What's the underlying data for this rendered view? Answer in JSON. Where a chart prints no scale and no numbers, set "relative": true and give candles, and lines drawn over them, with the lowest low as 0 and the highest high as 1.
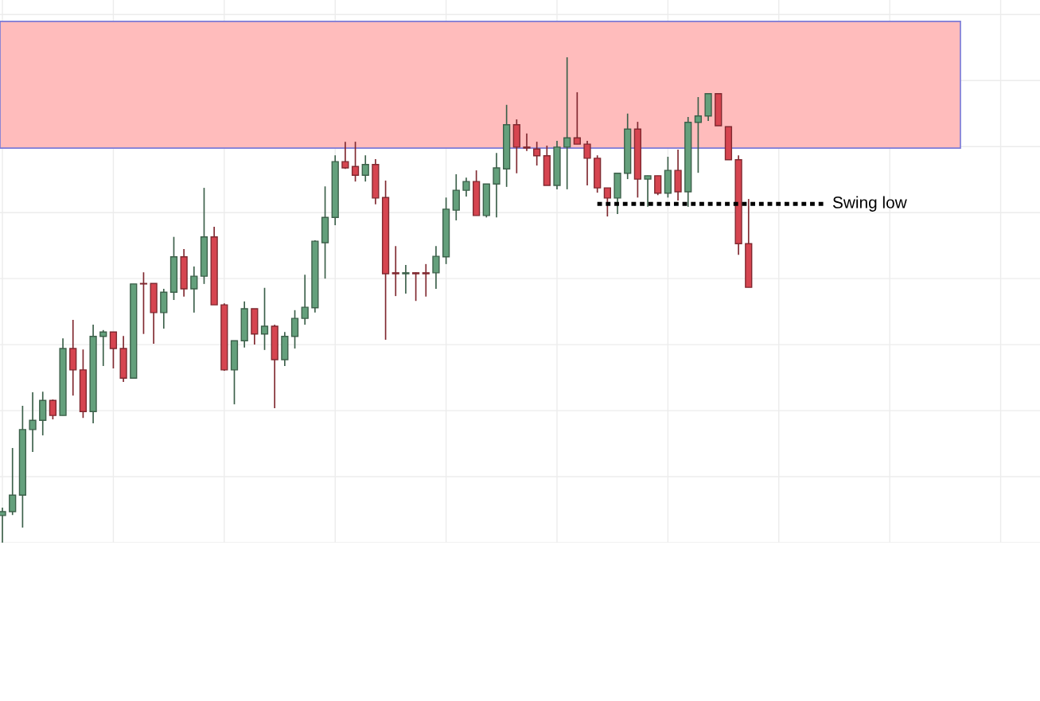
{
  "chart_data": {
    "type": "candlestick",
    "relative": true,
    "grid": true,
    "tick_labels": false,
    "categories": [
      null,
      null,
      null,
      null,
      null,
      null,
      null,
      null,
      null,
      null,
      null,
      null,
      null,
      null,
      null,
      null,
      null,
      null,
      null,
      null,
      null,
      null,
      null,
      null,
      null,
      null,
      null,
      null,
      null,
      null,
      null,
      null,
      null,
      null,
      null,
      null,
      null,
      null,
      null,
      null,
      null,
      null,
      null,
      null,
      null,
      null,
      null,
      null,
      null,
      null,
      null,
      null,
      null,
      null,
      null,
      null,
      null,
      null,
      null,
      null,
      null,
      null,
      null,
      null,
      null,
      null,
      null,
      null,
      null,
      null,
      null,
      null,
      null,
      null,
      null
    ],
    "ohlc": [
      [
        0.056,
        0.072,
        0,
        0.064
      ],
      [
        0.064,
        0.195,
        0.057,
        0.098
      ],
      [
        0.098,
        0.282,
        0.031,
        0.233
      ],
      [
        0.233,
        0.31,
        0.187,
        0.252
      ],
      [
        0.252,
        0.311,
        0.221,
        0.293
      ],
      [
        0.293,
        0.295,
        0.254,
        0.262
      ],
      [
        0.262,
        0.421,
        0.262,
        0.4
      ],
      [
        0.4,
        0.459,
        0.303,
        0.356
      ],
      [
        0.356,
        0.398,
        0.257,
        0.27
      ],
      [
        0.27,
        0.449,
        0.246,
        0.425
      ],
      [
        0.425,
        0.438,
        0.364,
        0.434
      ],
      [
        0.434,
        0.434,
        0.359,
        0.4
      ],
      [
        0.4,
        0.426,
        0.331,
        0.339
      ],
      [
        0.339,
        0.533,
        0.339,
        0.533
      ],
      [
        0.534,
        0.557,
        0.43,
        0.533
      ],
      [
        0.534,
        0.534,
        0.41,
        0.474
      ],
      [
        0.474,
        0.523,
        0.441,
        0.516
      ],
      [
        0.516,
        0.63,
        0.5,
        0.589
      ],
      [
        0.589,
        0.605,
        0.507,
        0.523
      ],
      [
        0.523,
        0.569,
        0.474,
        0.549
      ],
      [
        0.549,
        0.731,
        0.533,
        0.63
      ],
      [
        0.63,
        0.651,
        0.49,
        0.49
      ],
      [
        0.49,
        0.493,
        0.354,
        0.356
      ],
      [
        0.356,
        0.416,
        0.285,
        0.416
      ],
      [
        0.416,
        0.497,
        0.402,
        0.482
      ],
      [
        0.482,
        0.482,
        0.408,
        0.43
      ],
      [
        0.43,
        0.525,
        0.397,
        0.446
      ],
      [
        0.446,
        0.449,
        0.277,
        0.377
      ],
      [
        0.377,
        0.434,
        0.364,
        0.425
      ],
      [
        0.425,
        0.479,
        0.4,
        0.462
      ],
      [
        0.462,
        0.552,
        0.449,
        0.485
      ],
      [
        0.484,
        0.623,
        0.474,
        0.621
      ],
      [
        0.618,
        0.734,
        0.544,
        0.67
      ],
      [
        0.67,
        0.798,
        0.654,
        0.785
      ],
      [
        0.785,
        0.826,
        0.77,
        0.772
      ],
      [
        0.775,
        0.826,
        0.744,
        0.757
      ],
      [
        0.757,
        0.798,
        0.744,
        0.779
      ],
      [
        0.779,
        0.79,
        0.697,
        0.71
      ],
      [
        0.711,
        0.746,
        0.418,
        0.554
      ],
      [
        0.556,
        0.611,
        0.508,
        0.554
      ],
      [
        0.554,
        0.572,
        0.513,
        0.556
      ],
      [
        0.556,
        0.557,
        0.498,
        0.554
      ],
      [
        0.556,
        0.574,
        0.507,
        0.554
      ],
      [
        0.556,
        0.611,
        0.523,
        0.59
      ],
      [
        0.589,
        0.711,
        0.574,
        0.687
      ],
      [
        0.685,
        0.759,
        0.664,
        0.726
      ],
      [
        0.726,
        0.752,
        0.713,
        0.744
      ],
      [
        0.744,
        0.767,
        0.674,
        0.674
      ],
      [
        0.674,
        0.739,
        0.67,
        0.739
      ],
      [
        0.739,
        0.803,
        0.67,
        0.772
      ],
      [
        0.77,
        0.902,
        0.733,
        0.861
      ],
      [
        0.861,
        0.872,
        0.761,
        0.815
      ],
      [
        0.815,
        0.843,
        0.807,
        0.813
      ],
      [
        0.811,
        0.826,
        0.777,
        0.797
      ],
      [
        0.797,
        0.818,
        0.736,
        0.736
      ],
      [
        0.736,
        0.828,
        0.728,
        0.815
      ],
      [
        0.815,
        1.0,
        0.728,
        0.834
      ],
      [
        0.834,
        0.928,
        0.821,
        0.821
      ],
      [
        0.821,
        0.828,
        0.736,
        0.792
      ],
      [
        0.792,
        0.798,
        0.721,
        0.731
      ],
      [
        0.731,
        0.731,
        0.672,
        0.71
      ],
      [
        0.71,
        0.761,
        0.677,
        0.761
      ],
      [
        0.761,
        0.884,
        0.749,
        0.852
      ],
      [
        0.852,
        0.867,
        0.711,
        0.749
      ],
      [
        0.749,
        0.756,
        0.692,
        0.756
      ],
      [
        0.756,
        0.756,
        0.716,
        0.72
      ],
      [
        0.72,
        0.795,
        0.711,
        0.767
      ],
      [
        0.767,
        0.81,
        0.705,
        0.723
      ],
      [
        0.723,
        0.877,
        0.692,
        0.866
      ],
      [
        0.866,
        0.918,
        0.762,
        0.879
      ],
      [
        0.879,
        0.925,
        0.869,
        0.925
      ],
      [
        0.925,
        0.925,
        0.859,
        0.859
      ],
      [
        0.857,
        0.857,
        0.789,
        0.789
      ],
      [
        0.789,
        0.798,
        0.593,
        0.616
      ],
      [
        0.616,
        0.708,
        0.526,
        0.526
      ]
    ],
    "colors": [
      "#64a07c",
      "#64a07c",
      "#64a07c",
      "#64a07c",
      "#64a07c",
      "#d64550",
      "#64a07c",
      "#d64550",
      "#d64550",
      "#64a07c",
      "#64a07c",
      "#d64550",
      "#d64550",
      "#64a07c",
      "#d64550",
      "#d64550",
      "#64a07c",
      "#64a07c",
      "#d64550",
      "#64a07c",
      "#64a07c",
      "#d64550",
      "#d64550",
      "#64a07c",
      "#64a07c",
      "#d64550",
      "#64a07c",
      "#d64550",
      "#64a07c",
      "#64a07c",
      "#64a07c",
      "#64a07c",
      "#64a07c",
      "#64a07c",
      "#d64550",
      "#d64550",
      "#64a07c",
      "#d64550",
      "#d64550",
      "#d64550",
      "#64a07c",
      "#d64550",
      "#d64550",
      "#64a07c",
      "#64a07c",
      "#64a07c",
      "#64a07c",
      "#d64550",
      "#64a07c",
      "#64a07c",
      "#64a07c",
      "#d64550",
      "#d64550",
      "#d64550",
      "#d64550",
      "#64a07c",
      "#64a07c",
      "#d64550",
      "#d64550",
      "#d64550",
      "#d64550",
      "#64a07c",
      "#64a07c",
      "#d64550",
      "#64a07c",
      "#d64550",
      "#64a07c",
      "#d64550",
      "#64a07c",
      "#64a07c",
      "#64a07c",
      "#d64550",
      "#d64550",
      "#d64550",
      "#d64550"
    ],
    "bands": [
      {
        "axis": "y",
        "from": 0.813,
        "to": 1.074,
        "color": "#ffbcbc"
      }
    ],
    "ref_lines": [
      {
        "axis": "y",
        "value": 0.698,
        "label": "Swing low",
        "color": "#000000",
        "line_style": "dotted"
      }
    ]
  }
}
